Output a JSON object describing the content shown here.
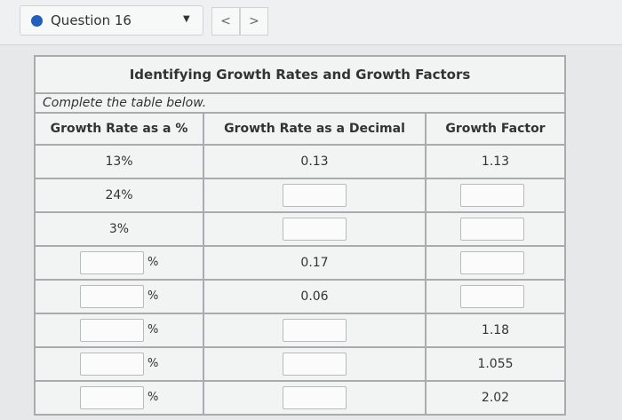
{
  "header": {
    "question": "Question 16",
    "prev": "<",
    "next": ">"
  },
  "table": {
    "title": "Identifying Growth Rates and Growth Factors",
    "instruction": "Complete the table below.",
    "columns": [
      "Growth Rate as a %",
      "Growth Rate as a Decimal",
      "Growth Factor"
    ],
    "rows": [
      [
        "13%",
        "0.13",
        "1.13"
      ],
      [
        "24%",
        null,
        null
      ],
      [
        "3%",
        null,
        null
      ],
      [
        {
          "suffix": "%"
        },
        "0.17",
        null
      ],
      [
        {
          "suffix": "%"
        },
        "0.06",
        null
      ],
      [
        {
          "suffix": "%"
        },
        null,
        "1.18"
      ],
      [
        {
          "suffix": "%"
        },
        null,
        "1.055"
      ],
      [
        {
          "suffix": "%"
        },
        null,
        "2.02"
      ]
    ]
  }
}
